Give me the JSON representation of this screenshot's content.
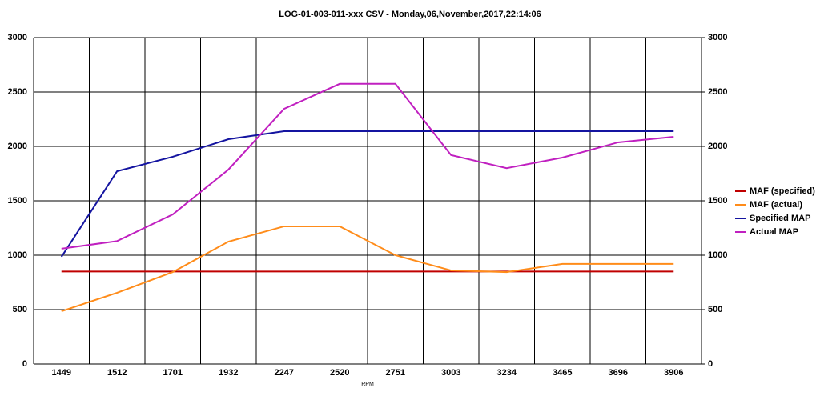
{
  "chart_data": {
    "type": "line",
    "title": "LOG-01-003-011-xxx CSV - Monday,06,November,2017,22:14:06",
    "x_label": "RPM",
    "categories": [
      "1449",
      "1512",
      "1701",
      "1932",
      "2247",
      "2520",
      "2751",
      "3003",
      "3234",
      "3465",
      "3696",
      "3906"
    ],
    "series": [
      {
        "name": "MAF (specified)",
        "color": "#c00000",
        "values": [
          850,
          850,
          850,
          850,
          850,
          850,
          850,
          850,
          850,
          850,
          850,
          850
        ]
      },
      {
        "name": "MAF (actual)",
        "color": "#ff8c1a",
        "values": [
          485,
          655,
          845,
          1125,
          1265,
          1265,
          1000,
          860,
          845,
          920,
          920,
          920
        ]
      },
      {
        "name": "Specified MAP",
        "color": "#1414a0",
        "values": [
          985,
          1772,
          1905,
          2066,
          2140,
          2140,
          2140,
          2140,
          2140,
          2140,
          2140,
          2140
        ]
      },
      {
        "name": "Actual MAP",
        "color": "#c020c0",
        "values": [
          1060,
          1130,
          1375,
          1787,
          2345,
          2575,
          2575,
          1920,
          1800,
          1897,
          2037,
          2088
        ]
      }
    ],
    "ylim": [
      0,
      3000
    ],
    "yticks": [
      0,
      500,
      1000,
      1500,
      2000,
      2500,
      3000
    ],
    "y2lim": [
      0,
      3000
    ],
    "y2ticks": [
      0,
      500,
      1000,
      1500,
      2000,
      2500,
      3000
    ],
    "grid": true,
    "legend": "right"
  }
}
